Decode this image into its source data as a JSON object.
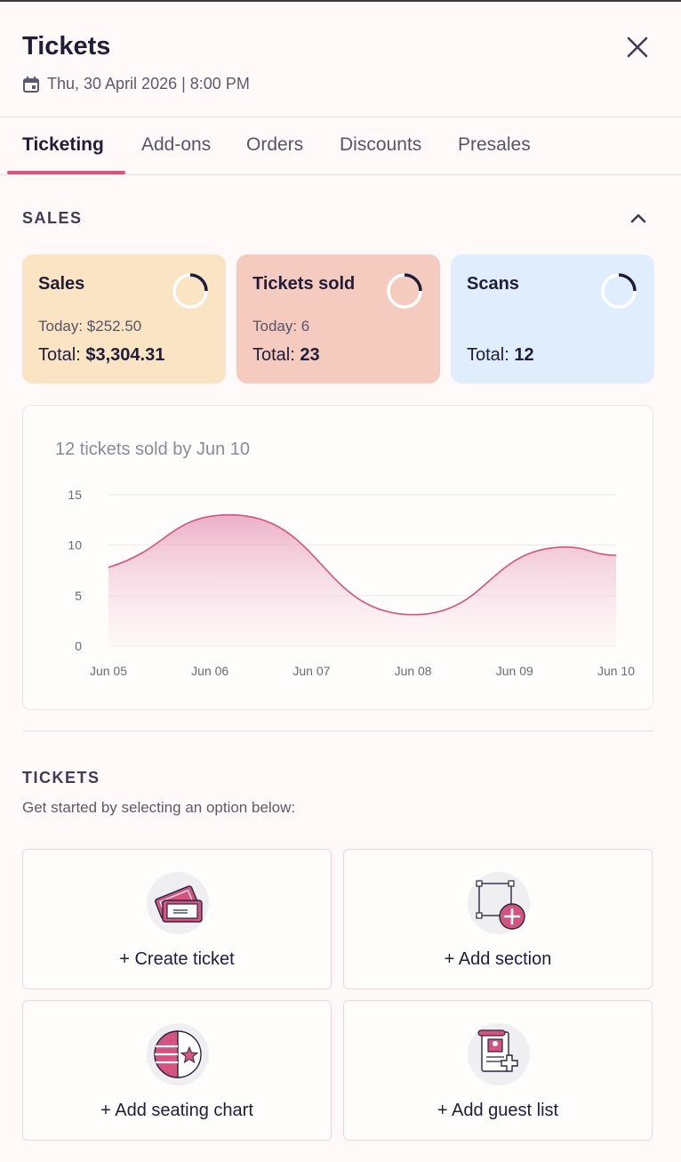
{
  "header": {
    "title": "Tickets",
    "date": "Thu, 30 April 2026 | 8:00 PM"
  },
  "tabs": [
    {
      "label": "Ticketing",
      "active": true
    },
    {
      "label": "Add-ons",
      "active": false
    },
    {
      "label": "Orders",
      "active": false
    },
    {
      "label": "Discounts",
      "active": false
    },
    {
      "label": "Presales",
      "active": false
    }
  ],
  "sales": {
    "section_title": "SALES",
    "cards": [
      {
        "label": "Sales",
        "today": "Today: $252.50",
        "total_prefix": "Total:",
        "total_value": "$3,304.31",
        "color": "#fae4c3"
      },
      {
        "label": "Tickets sold",
        "today": "Today: 6",
        "total_prefix": "Total:",
        "total_value": "23",
        "color": "#f5cbbf"
      },
      {
        "label": "Scans",
        "today": "",
        "total_prefix": "Total:",
        "total_value": "12",
        "color": "#dfedfd"
      }
    ]
  },
  "chart_data": {
    "type": "area",
    "title": "12 tickets sold by Jun 10",
    "categories": [
      "Jun 05",
      "Jun 06",
      "Jun 07",
      "Jun 08",
      "Jun 09",
      "Jun 10"
    ],
    "y_ticks": [
      0,
      5,
      10,
      15
    ],
    "ylim": [
      0,
      15
    ],
    "points": [
      {
        "x": 0,
        "y": 7.8
      },
      {
        "x": 1.2,
        "y": 13
      },
      {
        "x": 3.0,
        "y": 3.1
      },
      {
        "x": 4.5,
        "y": 9.8
      },
      {
        "x": 5.0,
        "y": 9.0
      }
    ],
    "line_color": "#d4537f",
    "grid": true
  },
  "tickets": {
    "section_title": "TICKETS",
    "subtitle": "Get started by selecting an option below:",
    "options": [
      {
        "label": "+ Create ticket",
        "icon": "ticket-icon"
      },
      {
        "label": "+ Add section",
        "icon": "add-section-icon"
      },
      {
        "label": "+ Add seating chart",
        "icon": "seating-chart-icon"
      },
      {
        "label": "+ Add guest list",
        "icon": "guest-list-icon"
      }
    ]
  }
}
